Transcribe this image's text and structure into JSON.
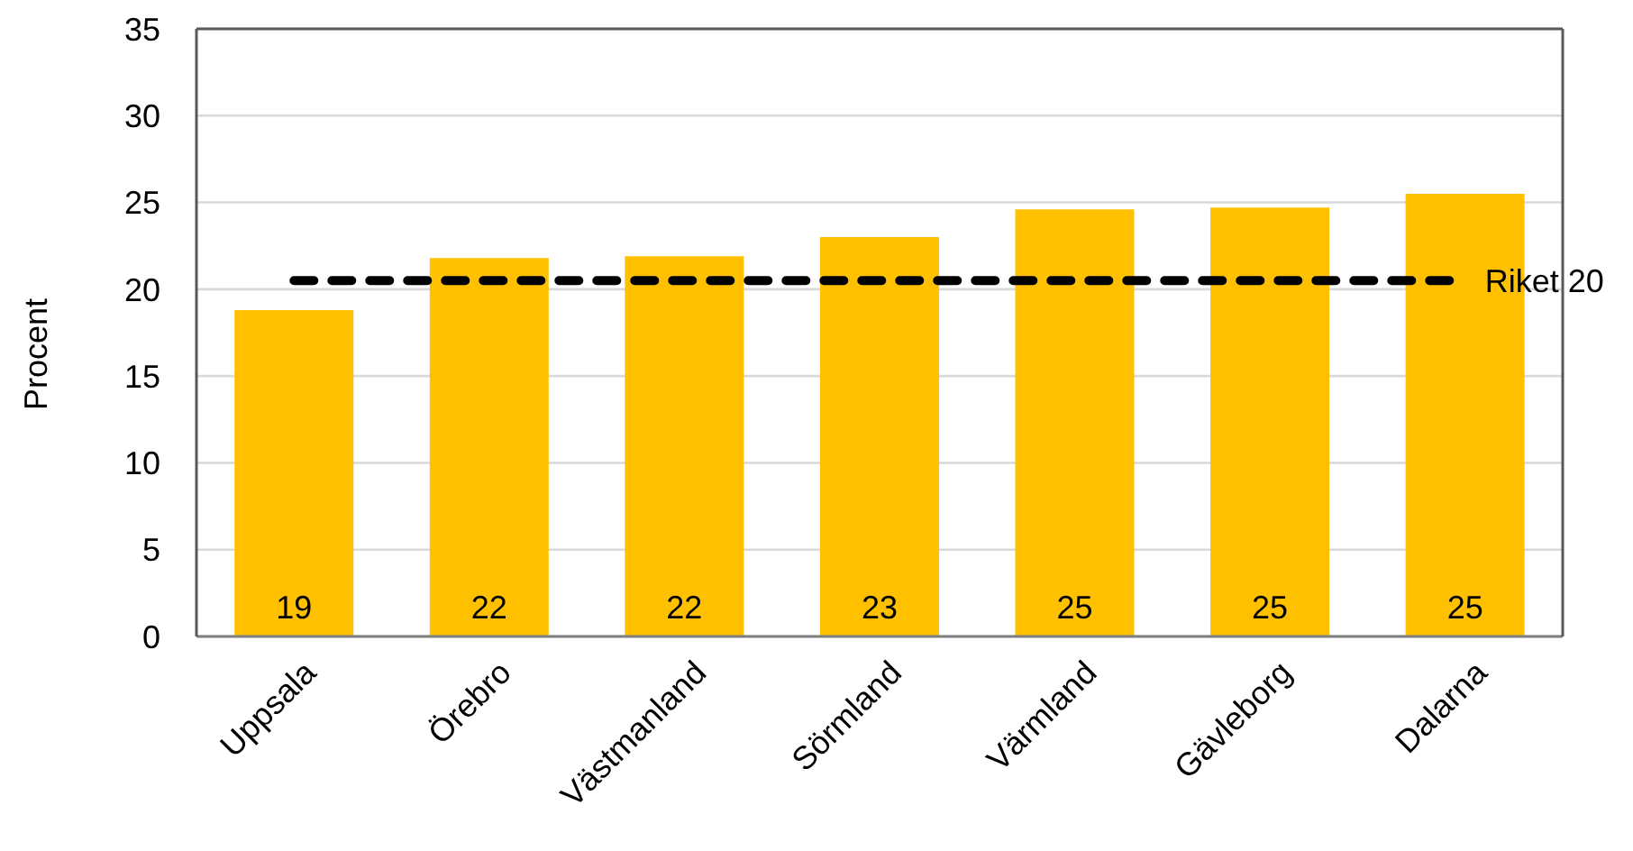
{
  "chart_data": {
    "type": "bar",
    "ylabel": "Procent",
    "categories": [
      "Uppsala",
      "Örebro",
      "Västmanland",
      "Sörmland",
      "Värmland",
      "Gävleborg",
      "Dalarna"
    ],
    "values": [
      18.8,
      21.8,
      21.9,
      23.0,
      24.6,
      24.7,
      25.5
    ],
    "value_labels": [
      "19",
      "22",
      "22",
      "23",
      "25",
      "25",
      "25"
    ],
    "color": "#ffc000",
    "ylim": [
      0,
      35
    ],
    "yticks": [
      0,
      5,
      10,
      15,
      20,
      25,
      30,
      35
    ],
    "grid": "y",
    "ref_lines": [
      {
        "axis": "y",
        "value": 20.5,
        "label": "Riket 20",
        "color": "#000000",
        "line_style": "dashed"
      }
    ]
  }
}
